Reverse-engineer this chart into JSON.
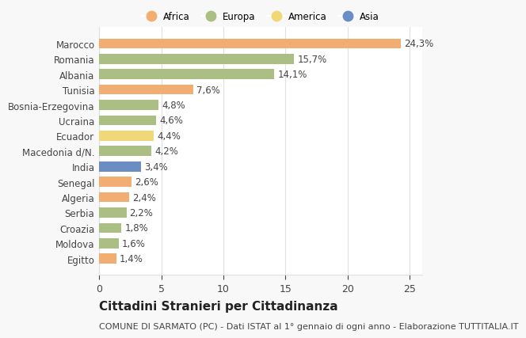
{
  "countries": [
    "Marocco",
    "Romania",
    "Albania",
    "Tunisia",
    "Bosnia-Erzegovina",
    "Ucraina",
    "Ecuador",
    "Macedonia d/N.",
    "India",
    "Senegal",
    "Algeria",
    "Serbia",
    "Croazia",
    "Moldova",
    "Egitto"
  ],
  "values": [
    24.3,
    15.7,
    14.1,
    7.6,
    4.8,
    4.6,
    4.4,
    4.2,
    3.4,
    2.6,
    2.4,
    2.2,
    1.8,
    1.6,
    1.4
  ],
  "labels": [
    "24,3%",
    "15,7%",
    "14,1%",
    "7,6%",
    "4,8%",
    "4,6%",
    "4,4%",
    "4,2%",
    "3,4%",
    "2,6%",
    "2,4%",
    "2,2%",
    "1,8%",
    "1,6%",
    "1,4%"
  ],
  "continents": [
    "Africa",
    "Europa",
    "Europa",
    "Africa",
    "Europa",
    "Europa",
    "America",
    "Europa",
    "Asia",
    "Africa",
    "Africa",
    "Europa",
    "Europa",
    "Europa",
    "Africa"
  ],
  "colors": {
    "Africa": "#F2AE72",
    "Europa": "#ABBF85",
    "America": "#F0D878",
    "Asia": "#6B8DC4"
  },
  "legend_order": [
    "Africa",
    "Europa",
    "America",
    "Asia"
  ],
  "title": "Cittadini Stranieri per Cittadinanza",
  "subtitle": "COMUNE DI SARMATO (PC) - Dati ISTAT al 1° gennaio di ogni anno - Elaborazione TUTTITALIA.IT",
  "xlim": [
    0,
    26
  ],
  "xticks": [
    0,
    5,
    10,
    15,
    20,
    25
  ],
  "background_color": "#f8f8f8",
  "bar_background": "#ffffff",
  "grid_color": "#e0e0e0",
  "text_color": "#444444",
  "label_fontsize": 8.5,
  "ytick_fontsize": 8.5,
  "xtick_fontsize": 9,
  "title_fontsize": 11,
  "subtitle_fontsize": 8,
  "bar_height": 0.65
}
